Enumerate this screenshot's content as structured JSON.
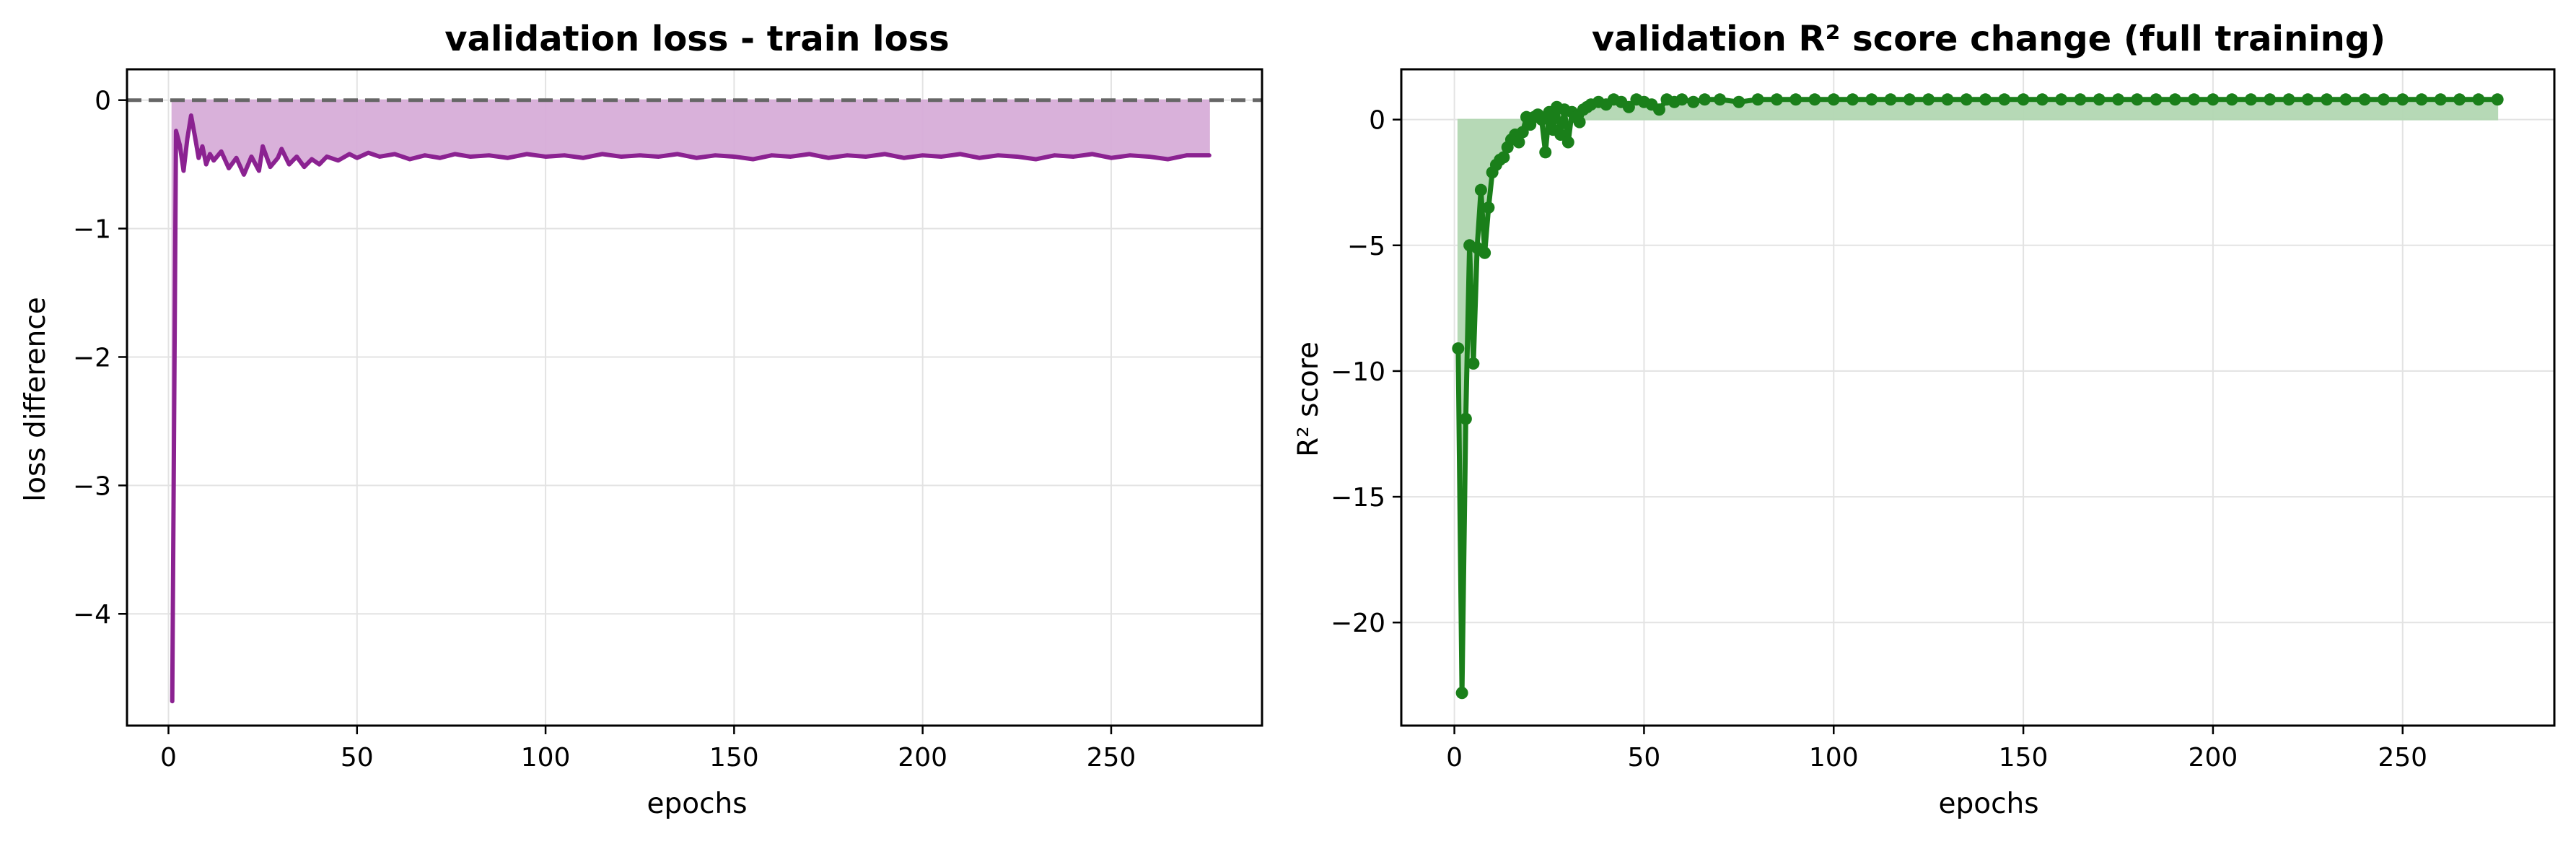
{
  "chart_data": [
    {
      "type": "area",
      "title": "validation loss - train loss",
      "xlabel": "epochs",
      "ylabel": "loss difference",
      "xlim": [
        -11,
        290
      ],
      "ylim": [
        -4.87,
        0.24
      ],
      "xticks": [
        0,
        50,
        100,
        150,
        200,
        250
      ],
      "yticks": [
        0,
        -1,
        -2,
        -3,
        -4
      ],
      "xtick_labels": [
        "0",
        "50",
        "100",
        "150",
        "200",
        "250"
      ],
      "ytick_labels": [
        "0",
        "−1",
        "−2",
        "−3",
        "−4"
      ],
      "grid": true,
      "reference_line": {
        "y": 0,
        "style": "dashed",
        "color": "#666666"
      },
      "series": [
        {
          "color": "#8B2291",
          "fill_color": "#D8ADD9",
          "fill_to": 0,
          "points": [
            [
              1,
              -4.68
            ],
            [
              2,
              -0.24
            ],
            [
              3,
              -0.35
            ],
            [
              4,
              -0.55
            ],
            [
              5,
              -0.3
            ],
            [
              6,
              -0.12
            ],
            [
              7,
              -0.28
            ],
            [
              8,
              -0.45
            ],
            [
              9,
              -0.36
            ],
            [
              10,
              -0.5
            ],
            [
              11,
              -0.42
            ],
            [
              12,
              -0.47
            ],
            [
              14,
              -0.4
            ],
            [
              16,
              -0.53
            ],
            [
              18,
              -0.45
            ],
            [
              20,
              -0.58
            ],
            [
              22,
              -0.44
            ],
            [
              24,
              -0.55
            ],
            [
              25,
              -0.36
            ],
            [
              27,
              -0.52
            ],
            [
              29,
              -0.45
            ],
            [
              30,
              -0.38
            ],
            [
              32,
              -0.5
            ],
            [
              34,
              -0.44
            ],
            [
              36,
              -0.52
            ],
            [
              38,
              -0.46
            ],
            [
              40,
              -0.5
            ],
            [
              42,
              -0.44
            ],
            [
              45,
              -0.47
            ],
            [
              48,
              -0.42
            ],
            [
              50,
              -0.45
            ],
            [
              53,
              -0.41
            ],
            [
              56,
              -0.44
            ],
            [
              60,
              -0.42
            ],
            [
              64,
              -0.46
            ],
            [
              68,
              -0.43
            ],
            [
              72,
              -0.45
            ],
            [
              76,
              -0.42
            ],
            [
              80,
              -0.44
            ],
            [
              85,
              -0.43
            ],
            [
              90,
              -0.45
            ],
            [
              95,
              -0.42
            ],
            [
              100,
              -0.44
            ],
            [
              105,
              -0.43
            ],
            [
              110,
              -0.45
            ],
            [
              115,
              -0.42
            ],
            [
              120,
              -0.44
            ],
            [
              125,
              -0.43
            ],
            [
              130,
              -0.44
            ],
            [
              135,
              -0.42
            ],
            [
              140,
              -0.45
            ],
            [
              145,
              -0.43
            ],
            [
              150,
              -0.44
            ],
            [
              155,
              -0.46
            ],
            [
              160,
              -0.43
            ],
            [
              165,
              -0.44
            ],
            [
              170,
              -0.42
            ],
            [
              175,
              -0.45
            ],
            [
              180,
              -0.43
            ],
            [
              185,
              -0.44
            ],
            [
              190,
              -0.42
            ],
            [
              195,
              -0.45
            ],
            [
              200,
              -0.43
            ],
            [
              205,
              -0.44
            ],
            [
              210,
              -0.42
            ],
            [
              215,
              -0.45
            ],
            [
              220,
              -0.43
            ],
            [
              225,
              -0.44
            ],
            [
              230,
              -0.46
            ],
            [
              235,
              -0.43
            ],
            [
              240,
              -0.44
            ],
            [
              245,
              -0.42
            ],
            [
              250,
              -0.45
            ],
            [
              255,
              -0.43
            ],
            [
              260,
              -0.44
            ],
            [
              265,
              -0.46
            ],
            [
              270,
              -0.43
            ],
            [
              276,
              -0.43
            ]
          ]
        }
      ]
    },
    {
      "type": "line",
      "title": "validation R² score change (full training)",
      "xlabel": "epochs",
      "ylabel": "R² score",
      "xlim": [
        -14,
        290
      ],
      "ylim": [
        -24.1,
        2.0
      ],
      "xticks": [
        0,
        50,
        100,
        150,
        200,
        250
      ],
      "yticks": [
        0,
        -5,
        -10,
        -15,
        -20
      ],
      "xtick_labels": [
        "0",
        "50",
        "100",
        "150",
        "200",
        "250"
      ],
      "ytick_labels": [
        "0",
        "−5",
        "−10",
        "−15",
        "−20"
      ],
      "grid": true,
      "series": [
        {
          "color": "#1A7F1A",
          "fill_color": "#B3D8B3",
          "fill_to": 0,
          "markers": true,
          "points": [
            [
              1,
              -9.1
            ],
            [
              2,
              -22.8
            ],
            [
              3,
              -11.9
            ],
            [
              4,
              -5.0
            ],
            [
              5,
              -9.7
            ],
            [
              6,
              -5.1
            ],
            [
              7,
              -2.8
            ],
            [
              8,
              -5.3
            ],
            [
              9,
              -3.5
            ],
            [
              10,
              -2.1
            ],
            [
              11,
              -1.8
            ],
            [
              12,
              -1.6
            ],
            [
              13,
              -1.5
            ],
            [
              14,
              -1.1
            ],
            [
              15,
              -0.8
            ],
            [
              16,
              -0.6
            ],
            [
              17,
              -0.9
            ],
            [
              18,
              -0.5
            ],
            [
              19,
              0.1
            ],
            [
              20,
              -0.2
            ],
            [
              21,
              0.1
            ],
            [
              22,
              0.2
            ],
            [
              23,
              0.0
            ],
            [
              24,
              -1.3
            ],
            [
              25,
              0.3
            ],
            [
              26,
              -0.4
            ],
            [
              27,
              0.5
            ],
            [
              28,
              -0.6
            ],
            [
              29,
              0.4
            ],
            [
              30,
              -0.9
            ],
            [
              31,
              0.3
            ],
            [
              32,
              0.1
            ],
            [
              33,
              -0.1
            ],
            [
              34,
              0.4
            ],
            [
              35,
              0.5
            ],
            [
              36,
              0.6
            ],
            [
              38,
              0.7
            ],
            [
              40,
              0.6
            ],
            [
              42,
              0.8
            ],
            [
              44,
              0.7
            ],
            [
              46,
              0.5
            ],
            [
              48,
              0.8
            ],
            [
              50,
              0.7
            ],
            [
              52,
              0.6
            ],
            [
              54,
              0.4
            ],
            [
              56,
              0.8
            ],
            [
              58,
              0.7
            ],
            [
              60,
              0.8
            ],
            [
              63,
              0.7
            ],
            [
              66,
              0.8
            ],
            [
              70,
              0.8
            ],
            [
              75,
              0.7
            ],
            [
              80,
              0.8
            ],
            [
              85,
              0.8
            ],
            [
              90,
              0.8
            ],
            [
              95,
              0.8
            ],
            [
              100,
              0.8
            ],
            [
              105,
              0.8
            ],
            [
              110,
              0.8
            ],
            [
              115,
              0.8
            ],
            [
              120,
              0.8
            ],
            [
              125,
              0.8
            ],
            [
              130,
              0.8
            ],
            [
              135,
              0.8
            ],
            [
              140,
              0.8
            ],
            [
              145,
              0.8
            ],
            [
              150,
              0.8
            ],
            [
              155,
              0.8
            ],
            [
              160,
              0.8
            ],
            [
              165,
              0.8
            ],
            [
              170,
              0.8
            ],
            [
              175,
              0.8
            ],
            [
              180,
              0.8
            ],
            [
              185,
              0.8
            ],
            [
              190,
              0.8
            ],
            [
              195,
              0.8
            ],
            [
              200,
              0.8
            ],
            [
              205,
              0.8
            ],
            [
              210,
              0.8
            ],
            [
              215,
              0.8
            ],
            [
              220,
              0.8
            ],
            [
              225,
              0.8
            ],
            [
              230,
              0.8
            ],
            [
              235,
              0.8
            ],
            [
              240,
              0.8
            ],
            [
              245,
              0.8
            ],
            [
              250,
              0.8
            ],
            [
              255,
              0.8
            ],
            [
              260,
              0.8
            ],
            [
              265,
              0.8
            ],
            [
              270,
              0.8
            ],
            [
              275,
              0.8
            ]
          ]
        }
      ]
    }
  ]
}
